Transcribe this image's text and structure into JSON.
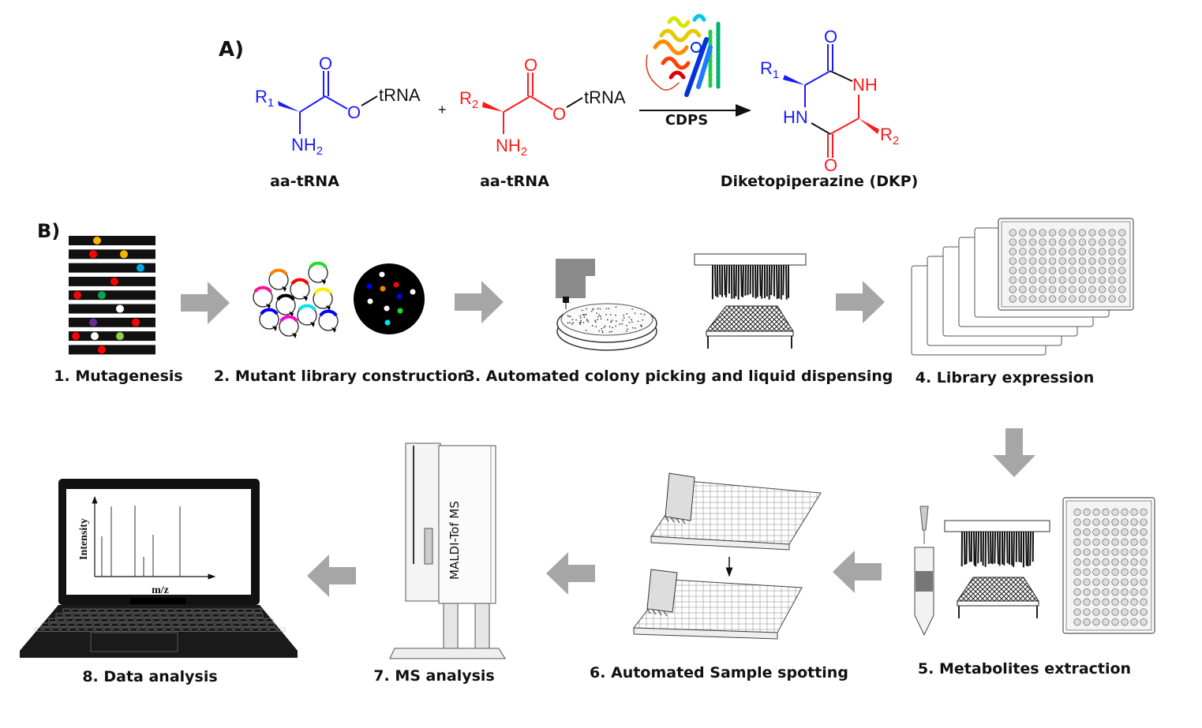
{
  "panel_a": {
    "label": "A)",
    "reactant1": {
      "r_group": "R",
      "r_sub": "1",
      "carbonyl_o": "O",
      "ester_o": "O",
      "trna": "tRNA",
      "amine": "NH",
      "amine_sub": "2",
      "caption": "aa-tRNA",
      "color": "#1a1aff"
    },
    "plus": "+",
    "reactant2": {
      "r_group": "R",
      "r_sub": "2",
      "carbonyl_o": "O",
      "ester_o": "O",
      "trna": "tRNA",
      "amine": "NH",
      "amine_sub": "2",
      "caption": "aa-tRNA",
      "color": "#ff1a1a"
    },
    "enzyme": "CDPS",
    "product": {
      "o_top": "O",
      "nh": "NH",
      "hn": "HN",
      "o_bottom": "O",
      "r1": "R",
      "r1_sub": "1",
      "r2": "R",
      "r2_sub": "2",
      "caption": "Diketopiperazine (DKP)"
    }
  },
  "panel_b": {
    "label": "B)",
    "steps": [
      {
        "label": "1. Mutagenesis"
      },
      {
        "label": "2. Mutant library construction"
      },
      {
        "label": "3. Automated colony picking and liquid dispensing"
      },
      {
        "label": "4. Library expression"
      },
      {
        "label": "5. Metabolites extraction"
      },
      {
        "label": "6. Automated Sample spotting"
      },
      {
        "label": "7. MS analysis"
      },
      {
        "label": "8. Data analysis"
      }
    ],
    "instrument_label": "MALDI-Tof MS",
    "spectrum": {
      "ylabel": "Intensity",
      "xlabel": "m/z"
    }
  },
  "colors": {
    "arrow": "#a6a6a6",
    "blue": "#1a1aff",
    "red": "#ff1a1a"
  }
}
